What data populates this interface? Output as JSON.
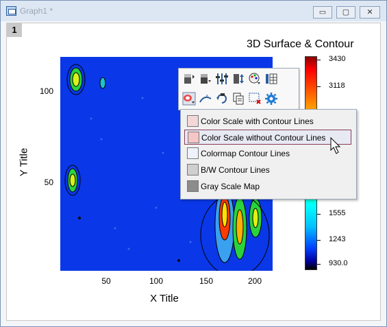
{
  "window": {
    "title": "Graph1 *",
    "min_glyph": "▭",
    "max_glyph": "▢",
    "close_glyph": "✕"
  },
  "page": {
    "number": "1"
  },
  "graph": {
    "title": "3D Surface & Contour",
    "x_title": "X Title",
    "y_title": "Y Title",
    "x_ticks": [
      "50",
      "100",
      "150",
      "200"
    ],
    "y_ticks": [
      "100",
      "50"
    ],
    "colorbar_labels": [
      "3430",
      "3118",
      "1555",
      "1243",
      "930.0"
    ]
  },
  "toolbar": {
    "icons": [
      "color-bar-icon",
      "color-scale-down-icon",
      "adjust-levels-icon",
      "flip-icon",
      "palette-icon",
      "table-icon",
      "contour-fill-icon",
      "line-label-icon",
      "rotate-icon",
      "copy-format-icon",
      "select-region-icon",
      "settings-gear-icon"
    ]
  },
  "menu": {
    "items": [
      {
        "label": "Color Scale with Contour Lines"
      },
      {
        "label": "Color Scale without Contour Lines"
      },
      {
        "label": "Colormap Contour Lines"
      },
      {
        "label": "B/W Contour Lines"
      },
      {
        "label": "Gray Scale Map"
      }
    ],
    "selected_index": 1
  }
}
